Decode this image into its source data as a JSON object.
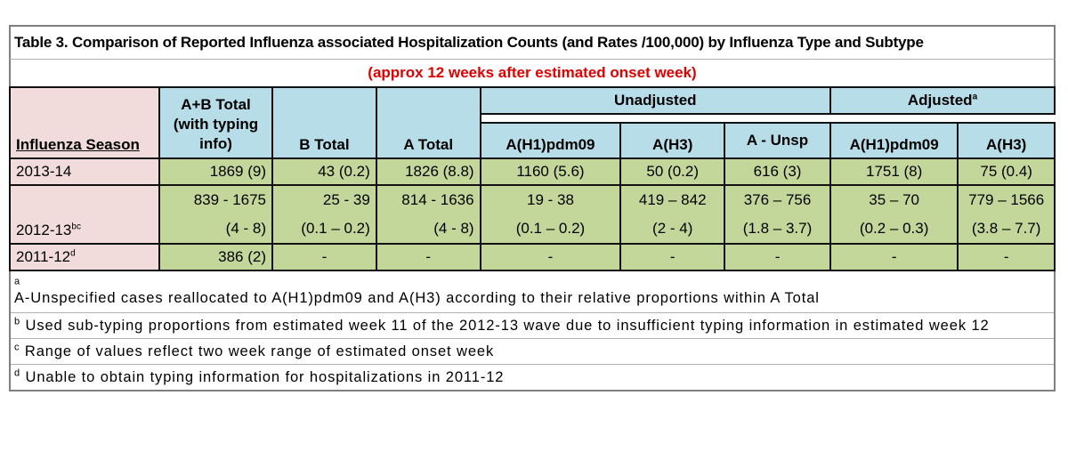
{
  "title": "Table 3. Comparison of Reported Influenza associated Hospitalization Counts (and Rates /100,000) by Influenza Type and Subtype",
  "subtitle": "(approx 12 weeks after estimated onset week)",
  "colors": {
    "pink": "#f2dcdb",
    "blue": "#b7dee8",
    "green": "#c4d79b",
    "red": "#e00000"
  },
  "header": {
    "season": "Influenza Season",
    "ab_total_1": "A+B Total",
    "ab_total_2": "(with typing",
    "ab_total_3": "info)",
    "b_total": "B Total",
    "a_total": "A Total",
    "unadjusted": "Unadjusted",
    "adjusted": "Adjusted",
    "adjusted_sup": "a",
    "unadj_h1": "A(H1)pdm09",
    "unadj_h3": "A(H3)",
    "unadj_unsp": "A - Unsp",
    "adj_h1": "A(H1)pdm09",
    "adj_h3": "A(H3)"
  },
  "rows": [
    {
      "season": "2013-14",
      "sup": "",
      "ab": "1869 (9)",
      "b": "43 (0.2)",
      "a": "1826 (8.8)",
      "u_h1": "1160 (5.6)",
      "u_h3": "50 (0.2)",
      "u_unsp": "616 (3)",
      "adj_h1": "1751 (8)",
      "adj_h3": "75 (0.4)"
    },
    {
      "season": "2012-13",
      "sup": "bc",
      "ab": "839 - 1675",
      "ab2": "(4 - 8)",
      "b": "25 - 39",
      "b2": "(0.1 – 0.2)",
      "a": "814 - 1636",
      "a2": "(4 - 8)",
      "u_h1": "19 - 38",
      "u_h1_2": "(0.1 – 0.2)",
      "u_h3": "419 – 842",
      "u_h3_2": "(2 - 4)",
      "u_unsp": "376 – 756",
      "u_unsp_2": "(1.8 – 3.7)",
      "adj_h1": "35 – 70",
      "adj_h1_2": "(0.2 – 0.3)",
      "adj_h3": "779 – 1566",
      "adj_h3_2": "(3.8 – 7.7)"
    },
    {
      "season": "2011-12",
      "sup": "d",
      "ab": "386 (2)",
      "b": "-",
      "a": "-",
      "u_h1": "-",
      "u_h3": "-",
      "u_unsp": "-",
      "adj_h1": "-",
      "adj_h3": "-"
    }
  ],
  "footnotes": [
    {
      "mark": "a",
      "text": "A-Unspecified cases reallocated to A(H1)pdm09 and A(H3) according to their relative proportions within A Total"
    },
    {
      "mark": "b",
      "text": "Used sub-typing proportions from estimated week 11  of the 2012-13 wave due to insufficient typing information in estimated week 12"
    },
    {
      "mark": "c",
      "text": "Range of values reflect two week range of estimated onset week"
    },
    {
      "mark": "d",
      "text": "Unable to obtain typing information for hospitalizations in 2011-12"
    }
  ]
}
